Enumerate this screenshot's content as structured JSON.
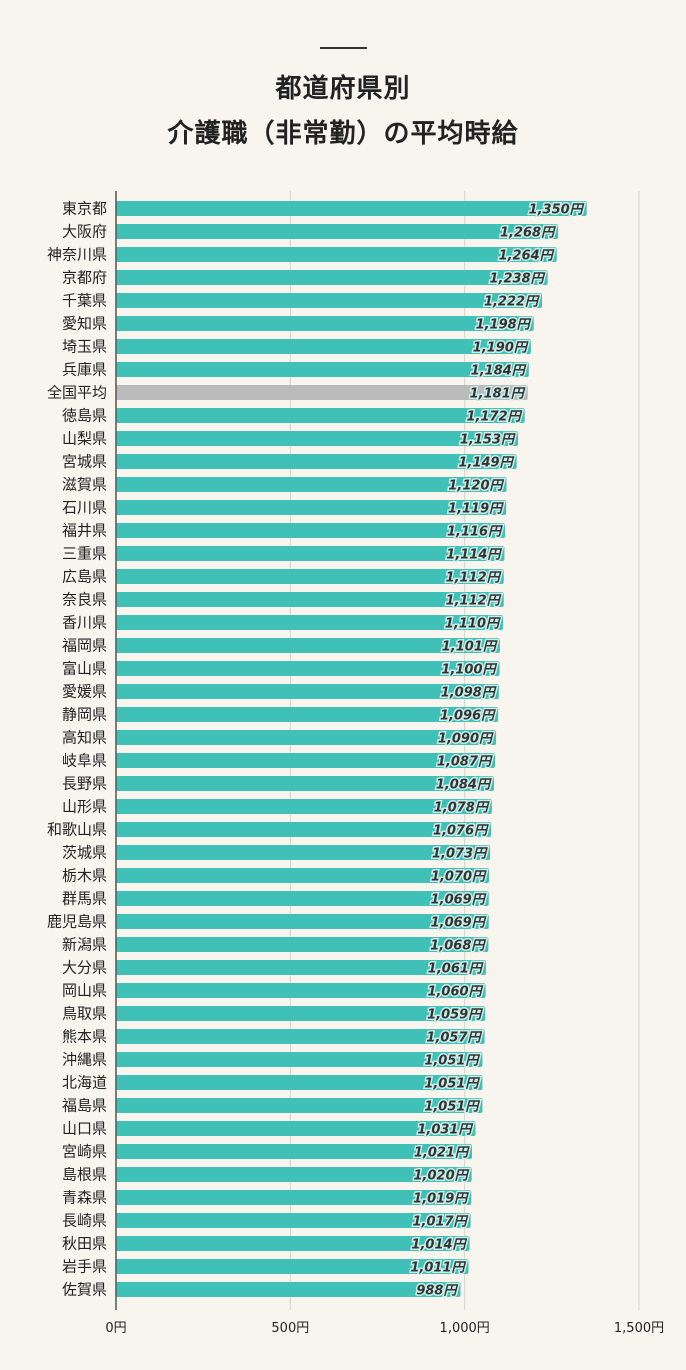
{
  "title": {
    "line1": "都道府県別",
    "line2": "介護職（非常勤）の平均時給"
  },
  "colors": {
    "bar": "#3fc1b7",
    "highlight_bar": "#bbbbbb",
    "grid": "#d6d3cc",
    "axis": "#555555",
    "background": "#f8f5ee"
  },
  "chart_data": {
    "type": "bar",
    "orientation": "horizontal",
    "title": "都道府県別 介護職（非常勤）の平均時給",
    "value_suffix": "円",
    "xlim": [
      0,
      1500
    ],
    "xticks": [
      0,
      500,
      1000,
      1500
    ],
    "xtick_labels": [
      "0円",
      "500円",
      "1,000円",
      "1,500円"
    ],
    "grid": true,
    "highlight_category": "全国平均",
    "categories": [
      "東京都",
      "大阪府",
      "神奈川県",
      "京都府",
      "千葉県",
      "愛知県",
      "埼玉県",
      "兵庫県",
      "全国平均",
      "徳島県",
      "山梨県",
      "宮城県",
      "滋賀県",
      "石川県",
      "福井県",
      "三重県",
      "広島県",
      "奈良県",
      "香川県",
      "福岡県",
      "富山県",
      "愛媛県",
      "静岡県",
      "高知県",
      "岐阜県",
      "長野県",
      "山形県",
      "和歌山県",
      "茨城県",
      "栃木県",
      "群馬県",
      "鹿児島県",
      "新潟県",
      "大分県",
      "岡山県",
      "鳥取県",
      "熊本県",
      "沖縄県",
      "北海道",
      "福島県",
      "山口県",
      "宮崎県",
      "島根県",
      "青森県",
      "長崎県",
      "秋田県",
      "岩手県",
      "佐賀県"
    ],
    "values": [
      1350,
      1268,
      1264,
      1238,
      1222,
      1198,
      1190,
      1184,
      1181,
      1172,
      1153,
      1149,
      1120,
      1119,
      1116,
      1114,
      1112,
      1112,
      1110,
      1101,
      1100,
      1098,
      1096,
      1090,
      1087,
      1084,
      1078,
      1076,
      1073,
      1070,
      1069,
      1069,
      1068,
      1061,
      1060,
      1059,
      1057,
      1051,
      1051,
      1051,
      1031,
      1021,
      1020,
      1019,
      1017,
      1014,
      1011,
      988
    ],
    "value_labels": [
      "1,350円",
      "1,268円",
      "1,264円",
      "1,238円",
      "1,222円",
      "1,198円",
      "1,190円",
      "1,184円",
      "1,181円",
      "1,172円",
      "1,153円",
      "1,149円",
      "1,120円",
      "1,119円",
      "1,116円",
      "1,114円",
      "1,112円",
      "1,112円",
      "1,110円",
      "1,101円",
      "1,100円",
      "1,098円",
      "1,096円",
      "1,090円",
      "1,087円",
      "1,084円",
      "1,078円",
      "1,076円",
      "1,073円",
      "1,070円",
      "1,069円",
      "1,069円",
      "1,068円",
      "1,061円",
      "1,060円",
      "1,059円",
      "1,057円",
      "1,051円",
      "1,051円",
      "1,051円",
      "1,031円",
      "1,021円",
      "1,020円",
      "1,019円",
      "1,017円",
      "1,014円",
      "1,011円",
      "988円"
    ]
  }
}
